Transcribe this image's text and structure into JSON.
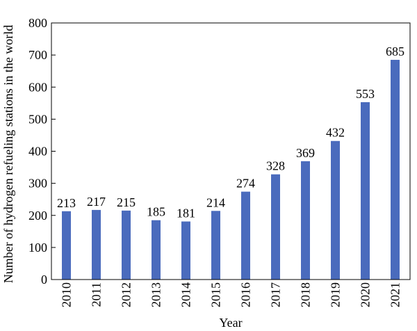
{
  "chart_data": {
    "type": "bar",
    "title": "",
    "xlabel": "Year",
    "ylabel": "Number of hydrogen refueling stations in the world",
    "categories": [
      "2010",
      "2011",
      "2012",
      "2013",
      "2014",
      "2015",
      "2016",
      "2017",
      "2018",
      "2019",
      "2020",
      "2021"
    ],
    "values": [
      213,
      217,
      215,
      185,
      181,
      214,
      274,
      328,
      369,
      432,
      553,
      685
    ],
    "data_labels": [
      "213",
      "217",
      "215",
      "185",
      "181",
      "214",
      "274",
      "328",
      "369",
      "432",
      "553",
      "685"
    ],
    "ylim": [
      0,
      800
    ],
    "yticks": [
      "0",
      "100",
      "200",
      "300",
      "400",
      "500",
      "600",
      "700",
      "800"
    ],
    "grid": false,
    "legend": "none",
    "bar_color": "#4a6bbd"
  }
}
